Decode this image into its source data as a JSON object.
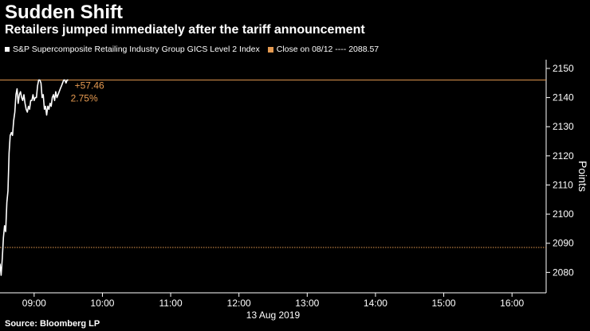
{
  "header": {
    "title": "Sudden Shift",
    "subtitle": "Retailers jumped immediately after the tariff announcement"
  },
  "legend": {
    "series_label": "S&P Supercomposite Retailing Industry Group GICS Level 2 Index",
    "reference_label": "Close on 08/12 ---- 2088.57"
  },
  "footer": {
    "source": "Source: Bloomberg LP"
  },
  "colors": {
    "background": "#000000",
    "series": "#ffffff",
    "reference": "#e59a51",
    "annotation": "#e59a51"
  },
  "chart_data": {
    "type": "line",
    "title": "Sudden Shift",
    "subtitle": "Retailers jumped immediately after the tariff announcement",
    "ylabel": "Points",
    "date_label": "13 Aug 2019",
    "x_ticks": [
      "09:00",
      "10:00",
      "11:00",
      "12:00",
      "13:00",
      "14:00",
      "15:00",
      "16:00"
    ],
    "x_range": [
      "08:30",
      "16:30"
    ],
    "y_ticks": [
      2080,
      2090,
      2100,
      2110,
      2120,
      2130,
      2140,
      2150
    ],
    "ylim": [
      2073,
      2153
    ],
    "y_axis_position": "right",
    "grid": "off",
    "series": [
      {
        "name": "S&P Supercomposite Retailing Industry Group GICS Level 2 Index",
        "x": [
          "08:30",
          "08:31",
          "08:32",
          "08:33",
          "08:34",
          "08:35",
          "08:36",
          "08:37",
          "08:38",
          "08:39",
          "08:40",
          "08:41",
          "08:42",
          "08:43",
          "08:44",
          "08:45",
          "08:46",
          "08:47",
          "08:48",
          "08:49",
          "08:50",
          "08:51",
          "08:52",
          "08:53",
          "08:54",
          "08:55",
          "08:56",
          "08:57",
          "08:58",
          "08:59",
          "09:00",
          "09:01",
          "09:02",
          "09:03",
          "09:04",
          "09:05",
          "09:06",
          "09:07",
          "09:08",
          "09:09",
          "09:10",
          "09:11",
          "09:12",
          "09:13",
          "09:14",
          "09:15",
          "09:16",
          "09:17",
          "09:18",
          "09:19",
          "09:20",
          "09:21",
          "09:22",
          "09:23",
          "09:24",
          "09:25",
          "09:26",
          "09:27",
          "09:28",
          "09:29",
          "09:30"
        ],
        "values": [
          2083,
          2079,
          2085,
          2092,
          2096,
          2094,
          2104,
          2108,
          2121,
          2127,
          2128,
          2127,
          2132,
          2135,
          2141,
          2143,
          2138,
          2141,
          2142,
          2140,
          2139,
          2141,
          2138,
          2136,
          2135,
          2137,
          2136,
          2139,
          2139,
          2141,
          2139,
          2140,
          2140,
          2144,
          2146,
          2146,
          2145,
          2140,
          2141,
          2136,
          2137,
          2134,
          2137,
          2136,
          2138,
          2137,
          2140,
          2141,
          2139,
          2142,
          2140,
          2141,
          2142,
          2143,
          2144,
          2145,
          2146,
          2146,
          2145,
          2146,
          2146
        ]
      }
    ],
    "reference_line": {
      "label": "Close on 08/12",
      "value": 2088.57
    },
    "last_value_line": 2146,
    "annotations": {
      "change": "+57.46",
      "percent": "2.75%"
    }
  }
}
